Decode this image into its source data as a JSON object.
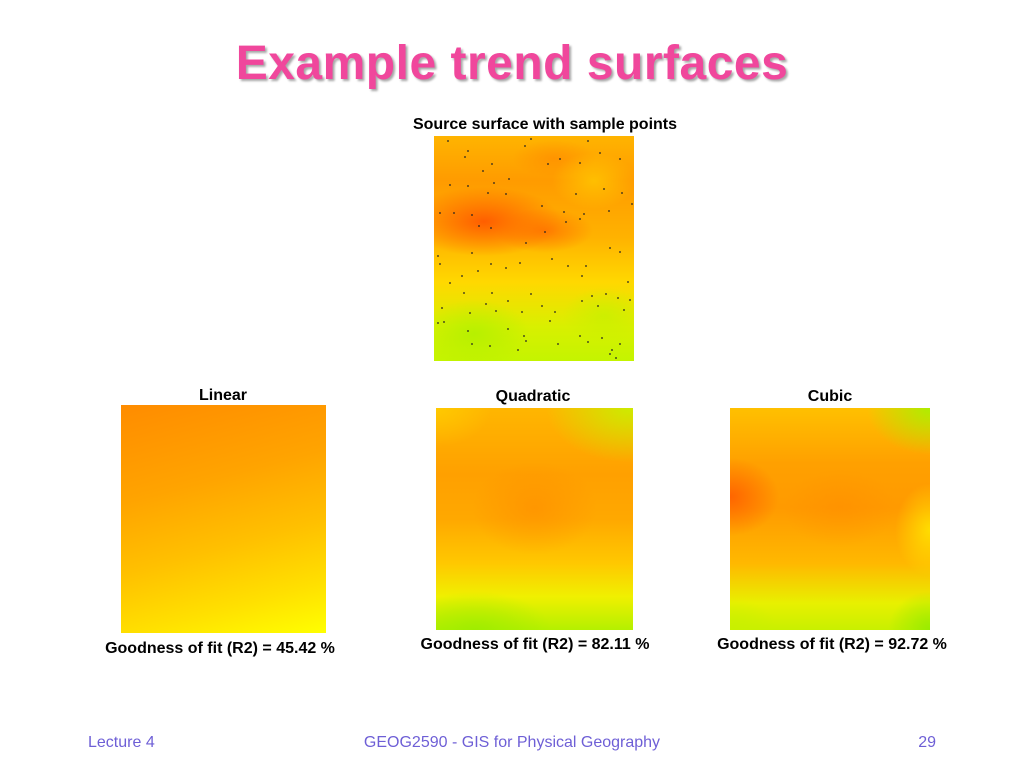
{
  "slide": {
    "title": "Example trend surfaces"
  },
  "source": {
    "caption": "Source surface with sample points"
  },
  "surfaces": [
    {
      "label": "Linear",
      "fit": "Goodness of fit (R2) = 45.42 %"
    },
    {
      "label": "Quadratic",
      "fit": "Goodness of fit (R2) = 82.11 %"
    },
    {
      "label": "Cubic",
      "fit": "Goodness of fit (R2) = 92.72 %"
    }
  ],
  "footer": {
    "left": "Lecture 4",
    "center": "GEOG2590 - GIS for Physical Geography",
    "page": "29"
  },
  "colors": {
    "title": "#f0479c",
    "footer": "#6e5fd6"
  }
}
